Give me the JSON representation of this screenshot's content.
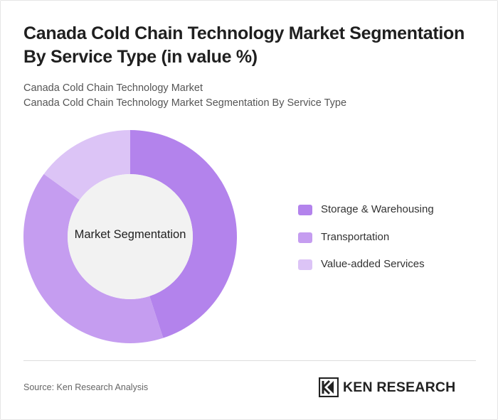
{
  "title": "Canada Cold Chain Technology Market Segmentation By Service Type (in value %)",
  "subtitle_lines": [
    "Canada Cold Chain Technology Market",
    "Canada Cold Chain Technology Market Segmentation By Service Type"
  ],
  "center_label": "Market Segmentation",
  "source": "Source: Ken Research Analysis",
  "brand": "KEN RESEARCH",
  "colors": {
    "storage": "#b383ec",
    "transport": "#c59df0",
    "value_added": "#dcc4f6",
    "hole": "#f2f2f2",
    "brand_mark": "#222222"
  },
  "chart_data": {
    "type": "pie",
    "variant": "donut",
    "categories": [
      "Storage & Warehousing",
      "Transportation",
      "Value-added Services"
    ],
    "values": [
      45,
      40,
      15
    ],
    "colors": [
      "#b383ec",
      "#c59df0",
      "#dcc4f6"
    ],
    "legend_position": "right"
  }
}
